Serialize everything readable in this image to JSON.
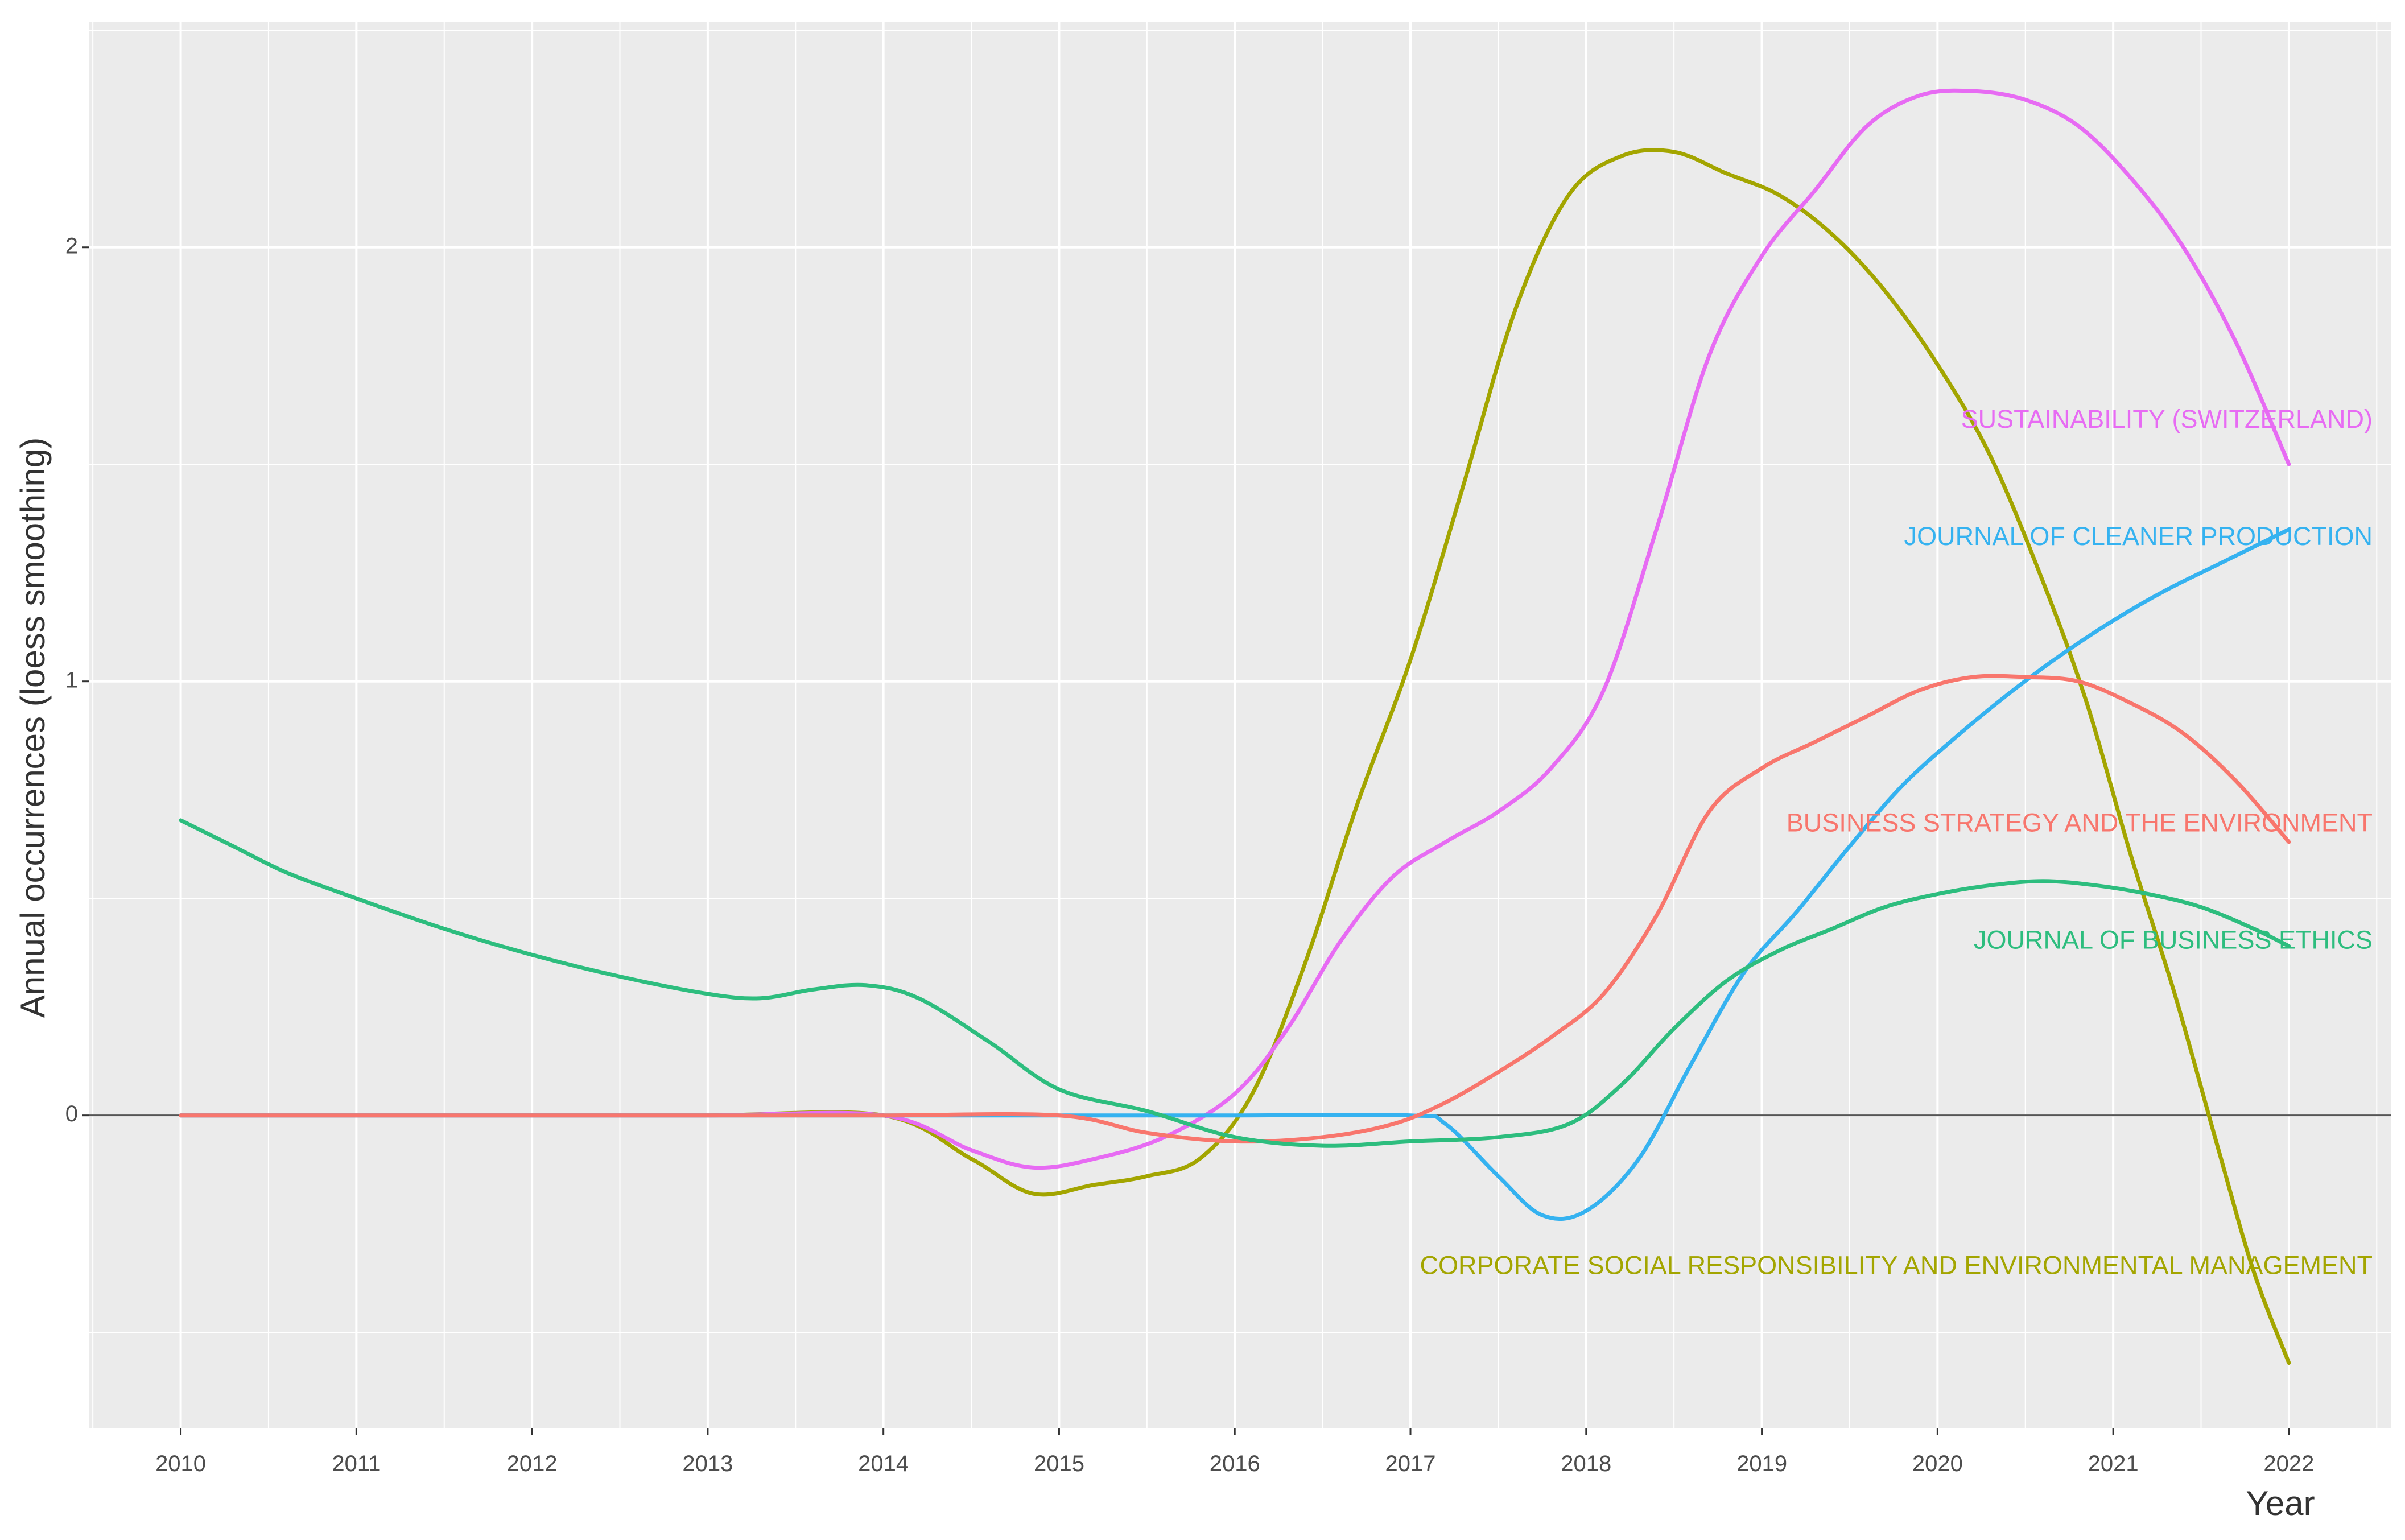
{
  "chart_data": {
    "type": "line",
    "title": "",
    "xlabel": "Year",
    "ylabel": "Annual occurrences (loess smoothing)",
    "x_ticks": [
      2010,
      2011,
      2012,
      2013,
      2014,
      2015,
      2016,
      2017,
      2018,
      2019,
      2020,
      2021,
      2022
    ],
    "y_ticks": [
      0,
      1,
      2
    ],
    "xlim": [
      2009.48,
      2022.58
    ],
    "ylim": [
      -0.72,
      2.52
    ],
    "grid": true,
    "reference_line_y": 0,
    "legend": "direct labels at right",
    "series": [
      {
        "name": "CORPORATE SOCIAL RESPONSIBILITY AND ENVIRONMENTAL MANAGEMENT",
        "color": "#A3A500",
        "points": [
          [
            2010,
            0
          ],
          [
            2011,
            0
          ],
          [
            2012,
            0
          ],
          [
            2013,
            0
          ],
          [
            2014,
            0
          ],
          [
            2014.5,
            -0.1
          ],
          [
            2014.85,
            -0.18
          ],
          [
            2015.2,
            -0.16
          ],
          [
            2015.5,
            -0.14
          ],
          [
            2015.8,
            -0.1
          ],
          [
            2016.1,
            0.05
          ],
          [
            2016.4,
            0.35
          ],
          [
            2016.7,
            0.72
          ],
          [
            2017,
            1.05
          ],
          [
            2017.3,
            1.45
          ],
          [
            2017.6,
            1.86
          ],
          [
            2017.9,
            2.12
          ],
          [
            2018.2,
            2.21
          ],
          [
            2018.5,
            2.22
          ],
          [
            2018.8,
            2.17
          ],
          [
            2019.1,
            2.12
          ],
          [
            2019.4,
            2.03
          ],
          [
            2019.7,
            1.9
          ],
          [
            2020,
            1.73
          ],
          [
            2020.3,
            1.52
          ],
          [
            2020.6,
            1.23
          ],
          [
            2020.85,
            0.95
          ],
          [
            2021.1,
            0.6
          ],
          [
            2021.35,
            0.28
          ],
          [
            2021.6,
            -0.08
          ],
          [
            2021.8,
            -0.36
          ],
          [
            2022,
            -0.57
          ]
        ]
      },
      {
        "name": "SUSTAINABILITY (SWITZERLAND)",
        "color": "#E76BF3",
        "points": [
          [
            2010,
            0
          ],
          [
            2011,
            0
          ],
          [
            2012,
            0
          ],
          [
            2013,
            0
          ],
          [
            2014,
            0
          ],
          [
            2014.5,
            -0.08
          ],
          [
            2014.85,
            -0.12
          ],
          [
            2015.2,
            -0.1
          ],
          [
            2015.6,
            -0.05
          ],
          [
            2016,
            0.05
          ],
          [
            2016.3,
            0.2
          ],
          [
            2016.6,
            0.4
          ],
          [
            2016.9,
            0.55
          ],
          [
            2017.2,
            0.63
          ],
          [
            2017.5,
            0.7
          ],
          [
            2017.8,
            0.8
          ],
          [
            2018.1,
            0.98
          ],
          [
            2018.4,
            1.35
          ],
          [
            2018.7,
            1.75
          ],
          [
            2019,
            1.98
          ],
          [
            2019.3,
            2.13
          ],
          [
            2019.6,
            2.28
          ],
          [
            2019.9,
            2.35
          ],
          [
            2020.2,
            2.36
          ],
          [
            2020.5,
            2.34
          ],
          [
            2020.8,
            2.28
          ],
          [
            2021.1,
            2.16
          ],
          [
            2021.4,
            2
          ],
          [
            2021.7,
            1.78
          ],
          [
            2022,
            1.5
          ]
        ]
      },
      {
        "name": "JOURNAL OF CLEANER PRODUCTION",
        "color": "#35B2F0",
        "points": [
          [
            2010,
            0
          ],
          [
            2011,
            0
          ],
          [
            2012,
            0
          ],
          [
            2013,
            0
          ],
          [
            2014,
            0
          ],
          [
            2015,
            0
          ],
          [
            2016,
            0
          ],
          [
            2017,
            0
          ],
          [
            2017.2,
            -0.02
          ],
          [
            2017.5,
            -0.14
          ],
          [
            2017.75,
            -0.23
          ],
          [
            2018,
            -0.22
          ],
          [
            2018.3,
            -0.1
          ],
          [
            2018.6,
            0.12
          ],
          [
            2018.9,
            0.33
          ],
          [
            2019.2,
            0.47
          ],
          [
            2019.5,
            0.62
          ],
          [
            2019.8,
            0.76
          ],
          [
            2020.1,
            0.87
          ],
          [
            2020.4,
            0.97
          ],
          [
            2020.7,
            1.06
          ],
          [
            2021,
            1.14
          ],
          [
            2021.3,
            1.21
          ],
          [
            2021.6,
            1.27
          ],
          [
            2022,
            1.35
          ]
        ]
      },
      {
        "name": "BUSINESS STRATEGY AND THE ENVIRONMENT",
        "color": "#F8766D",
        "points": [
          [
            2010,
            0
          ],
          [
            2011,
            0
          ],
          [
            2012,
            0
          ],
          [
            2013,
            0
          ],
          [
            2014,
            0
          ],
          [
            2015,
            0
          ],
          [
            2015.5,
            -0.04
          ],
          [
            2016,
            -0.06
          ],
          [
            2016.5,
            -0.05
          ],
          [
            2016.9,
            -0.02
          ],
          [
            2017.2,
            0.03
          ],
          [
            2017.5,
            0.1
          ],
          [
            2017.8,
            0.18
          ],
          [
            2018.1,
            0.28
          ],
          [
            2018.4,
            0.46
          ],
          [
            2018.7,
            0.7
          ],
          [
            2019,
            0.8
          ],
          [
            2019.3,
            0.86
          ],
          [
            2019.6,
            0.92
          ],
          [
            2019.9,
            0.98
          ],
          [
            2020.2,
            1.01
          ],
          [
            2020.5,
            1.01
          ],
          [
            2020.8,
            1
          ],
          [
            2021.1,
            0.95
          ],
          [
            2021.4,
            0.88
          ],
          [
            2021.7,
            0.77
          ],
          [
            2022,
            0.63
          ]
        ]
      },
      {
        "name": "JOURNAL OF BUSINESS ETHICS",
        "color": "#2DBD7E",
        "points": [
          [
            2010,
            0.68
          ],
          [
            2010.3,
            0.62
          ],
          [
            2010.6,
            0.56
          ],
          [
            2011,
            0.5
          ],
          [
            2011.5,
            0.43
          ],
          [
            2012,
            0.37
          ],
          [
            2012.5,
            0.32
          ],
          [
            2013,
            0.28
          ],
          [
            2013.3,
            0.27
          ],
          [
            2013.6,
            0.29
          ],
          [
            2013.9,
            0.3
          ],
          [
            2014.2,
            0.27
          ],
          [
            2014.6,
            0.17
          ],
          [
            2015,
            0.06
          ],
          [
            2015.5,
            0.01
          ],
          [
            2016,
            -0.05
          ],
          [
            2016.5,
            -0.07
          ],
          [
            2017,
            -0.06
          ],
          [
            2017.5,
            -0.05
          ],
          [
            2017.9,
            -0.02
          ],
          [
            2018.2,
            0.07
          ],
          [
            2018.5,
            0.2
          ],
          [
            2018.8,
            0.31
          ],
          [
            2019.1,
            0.38
          ],
          [
            2019.4,
            0.43
          ],
          [
            2019.7,
            0.48
          ],
          [
            2020,
            0.51
          ],
          [
            2020.3,
            0.53
          ],
          [
            2020.6,
            0.54
          ],
          [
            2020.9,
            0.53
          ],
          [
            2021.2,
            0.51
          ],
          [
            2021.5,
            0.48
          ],
          [
            2021.8,
            0.43
          ],
          [
            2022,
            0.39
          ]
        ]
      }
    ],
    "labels": [
      {
        "text": "SUSTAINABILITY (SWITZERLAND)",
        "color": "#E76BF3",
        "y": 1.6
      },
      {
        "text": "JOURNAL OF CLEANER PRODUCTION",
        "color": "#35B2F0",
        "y": 1.33
      },
      {
        "text": "BUSINESS STRATEGY AND THE ENVIRONMENT",
        "color": "#F8766D",
        "y": 0.67
      },
      {
        "text": "JOURNAL OF BUSINESS ETHICS",
        "color": "#2DBD7E",
        "y": 0.4
      },
      {
        "text": "CORPORATE SOCIAL RESPONSIBILITY AND ENVIRONMENTAL MANAGEMENT",
        "color": "#A3A500",
        "y": -0.35
      }
    ]
  }
}
